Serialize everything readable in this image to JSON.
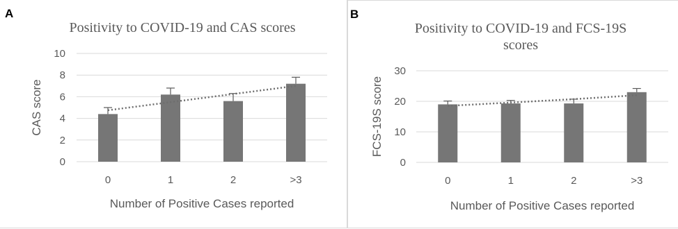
{
  "chart_data": [
    {
      "panel": "A",
      "type": "bar",
      "title": "Positivity to COVID-19 and CAS scores",
      "xlabel": "Number of Positive Cases reported",
      "ylabel": "CAS score",
      "categories": [
        "0",
        "1",
        "2",
        ">3"
      ],
      "values": [
        4.4,
        6.2,
        5.6,
        7.2
      ],
      "error_bars": [
        0.6,
        0.6,
        0.7,
        0.6
      ],
      "ylim": [
        0,
        10
      ],
      "yticks": [
        0,
        2,
        4,
        6,
        8,
        10
      ],
      "trendline": [
        4.75,
        5.5,
        6.25,
        7.0
      ],
      "grid": true,
      "bar_color": "#767676"
    },
    {
      "panel": "B",
      "type": "bar",
      "title_lines": [
        "Positivity to COVID-19 and FCS-19S",
        "scores"
      ],
      "xlabel": "Number of Positive Cases reported",
      "ylabel": "FCS-19S score",
      "categories": [
        "0",
        "1",
        "2",
        ">3"
      ],
      "values": [
        19,
        19.3,
        19.3,
        23
      ],
      "error_bars": [
        1.1,
        1.0,
        1.4,
        1.2
      ],
      "ylim": [
        0,
        30
      ],
      "yticks": [
        0,
        10,
        20,
        30
      ],
      "trendline": [
        18.5,
        19.6,
        20.7,
        22.0
      ],
      "grid": true,
      "bar_color": "#767676"
    }
  ]
}
